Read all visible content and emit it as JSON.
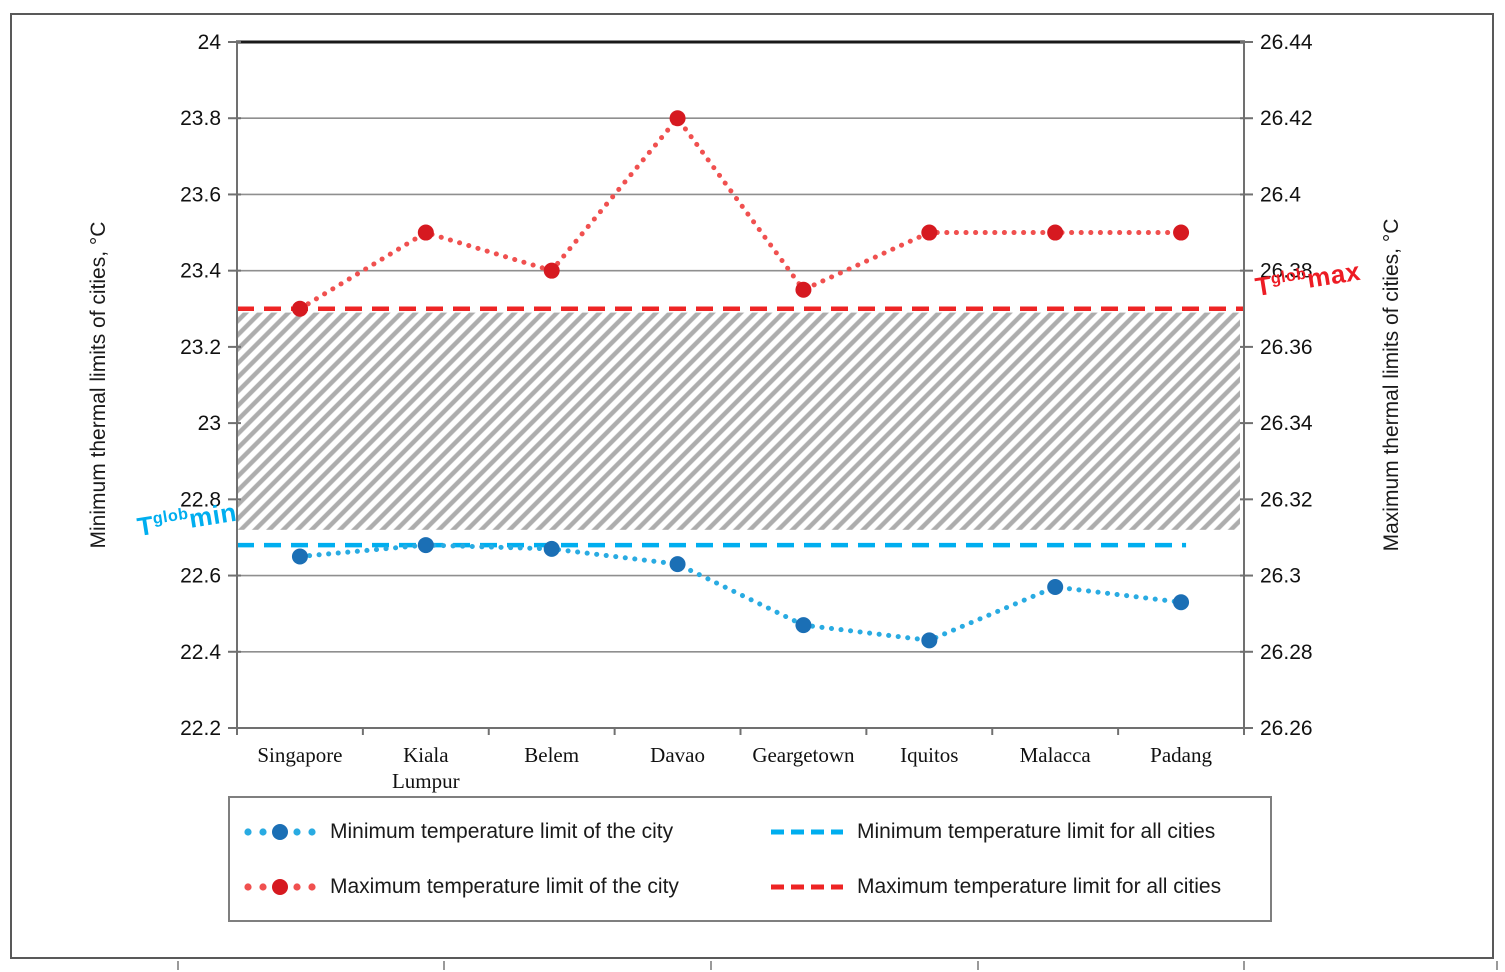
{
  "figure": {
    "type": "excel-style line chart figure",
    "background": "#ffffff"
  },
  "chart_data": {
    "type": "line",
    "categories": [
      "Singapore",
      "Kiala\nLumpur",
      "Belem",
      "Davao",
      "Geargetown",
      "Iquitos",
      "Malacca",
      "Padang"
    ],
    "series": [
      {
        "name": "Minimum temperature limit of the city",
        "axis": "left",
        "style": "dotted-with-markers",
        "line_color": "#29ABE2",
        "marker_color": "#1B6FB5",
        "values": [
          22.65,
          22.68,
          22.67,
          22.63,
          22.47,
          22.43,
          22.57,
          22.53
        ]
      },
      {
        "name": "Maximum temperature limit of the city",
        "axis": "right",
        "style": "dotted-with-markers",
        "line_color": "#F0504F",
        "marker_color": "#D61920",
        "values": [
          26.37,
          26.39,
          26.38,
          26.42,
          26.375,
          26.39,
          26.39,
          26.39
        ]
      }
    ],
    "reference_lines": [
      {
        "name": "Minimum temperature limit for all cities",
        "axis": "left",
        "value": 22.68,
        "style": "dashed",
        "color": "#00AEEF",
        "extends_to_right_edge": false
      },
      {
        "name": "Maximum temperature limit for all cities",
        "axis": "right",
        "value": 26.37,
        "style": "dashed",
        "color": "#EE2424",
        "extends_to_right_edge": true
      }
    ],
    "hatch_band_left_axis": [
      22.72,
      23.29
    ],
    "left_axis": {
      "title": "Minimum thermal limits of cities, °C",
      "min": 22.2,
      "max": 24,
      "tick_labels": [
        "24",
        "23.8",
        "23.6",
        "23.4",
        "23.2",
        "23",
        "22.8",
        "22.6",
        "22.4",
        "22.2"
      ],
      "tick_values": [
        24,
        23.8,
        23.6,
        23.4,
        23.2,
        23,
        22.8,
        22.6,
        22.4,
        22.2
      ]
    },
    "right_axis": {
      "title": "Maximum thermal limits of cities, °C",
      "min": 26.26,
      "max": 26.44,
      "tick_labels": [
        "26.44",
        "26.42",
        "26.4",
        "26.38",
        "26.36",
        "26.34",
        "26.32",
        "26.3",
        "26.28",
        "26.26"
      ],
      "tick_values": [
        26.44,
        26.42,
        26.4,
        26.38,
        26.36,
        26.34,
        26.32,
        26.3,
        26.28,
        26.26
      ]
    },
    "grid": true,
    "legend_position": "bottom"
  },
  "annotations": {
    "global_min": {
      "base": "T",
      "sup": "glob",
      "rest": "min",
      "color": "#00AEEF"
    },
    "global_max": {
      "base": "T",
      "sup": "glob",
      "rest": "max",
      "color": "#ED1C24"
    }
  },
  "legend": {
    "items": [
      {
        "label": "Minimum temperature limit of the city",
        "sample": "dotted-marker",
        "line_color": "#29ABE2",
        "marker_color": "#1B6FB5"
      },
      {
        "label": "Minimum temperature limit for all cities",
        "sample": "dashed",
        "line_color": "#00AEEF"
      },
      {
        "label": "Maximum temperature limit of the city",
        "sample": "dotted-marker",
        "line_color": "#F0504F",
        "marker_color": "#D61920"
      },
      {
        "label": "Maximum temperature limit for all cities",
        "sample": "dashed",
        "line_color": "#EE2424"
      }
    ]
  },
  "colors": {
    "grid": "#8f8f8f",
    "axis_line": "#707070",
    "plot_top_border": "#1a1a1a",
    "outer_border": "#595959",
    "hatch": "#ADADAD",
    "text": "#1a1a1a"
  }
}
